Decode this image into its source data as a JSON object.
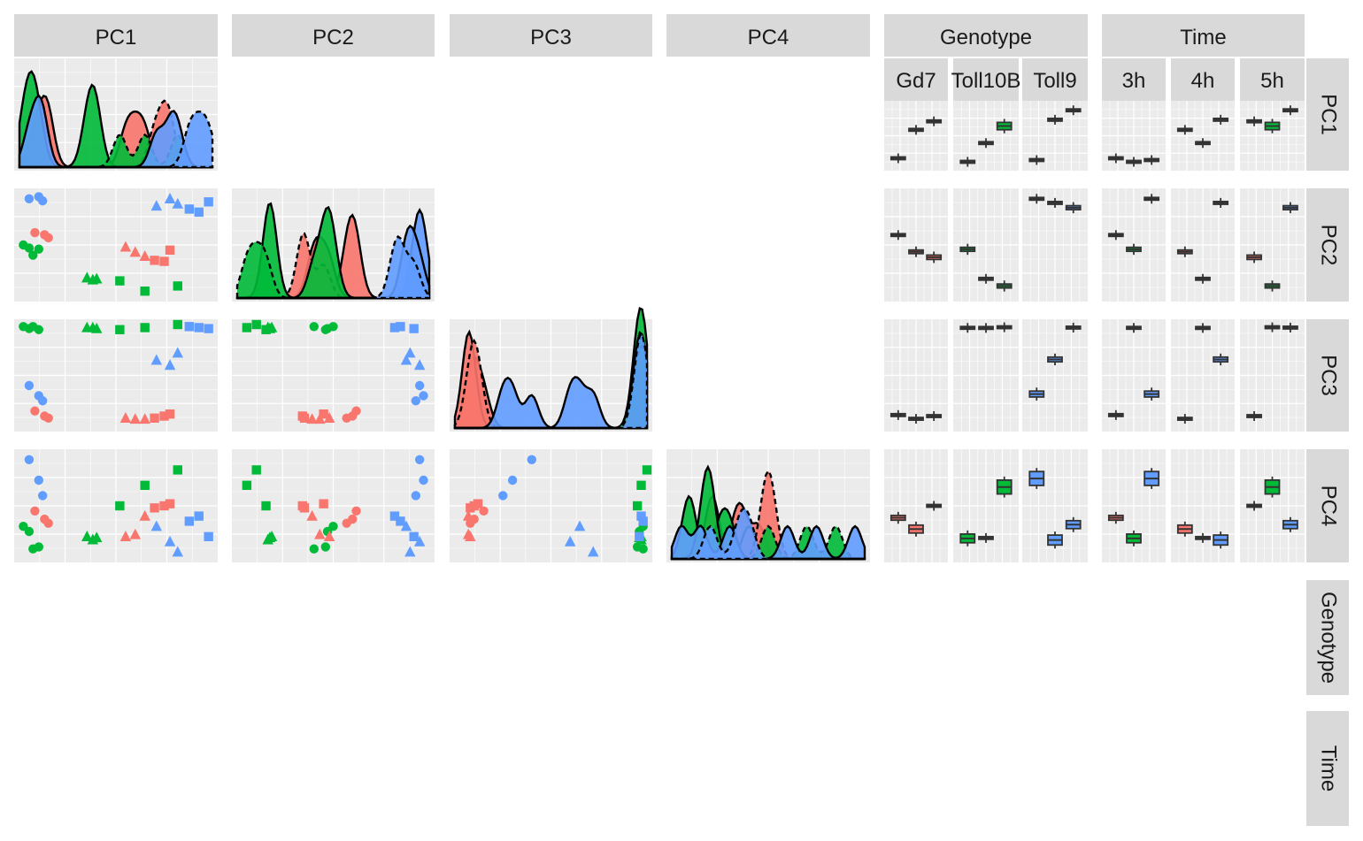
{
  "chart_data": {
    "type": "scatter-matrix",
    "title": "",
    "variables": [
      "PC1",
      "PC2",
      "PC3",
      "PC4",
      "Genotype",
      "Time"
    ],
    "group_levels": {
      "Genotype": [
        "Gd7",
        "Toll10B",
        "Toll9"
      ],
      "Time": [
        "3h",
        "4h",
        "5h"
      ]
    },
    "facet_labels": {
      "columns": [
        "PC1",
        "PC2",
        "PC3",
        "PC4",
        "Genotype",
        "Time"
      ],
      "rows": [
        "PC1",
        "PC2",
        "PC3",
        "PC4",
        "Genotype",
        "Time"
      ],
      "genotype_sub": [
        "Gd7",
        "Toll10B",
        "Toll9"
      ],
      "time_sub": [
        "3h",
        "4h",
        "5h"
      ]
    },
    "encoding": {
      "color": "Genotype",
      "shape": "Time",
      "shape_map": {
        "3h": "circle",
        "4h": "triangle",
        "5h": "square"
      },
      "density_linetype": {
        "3h": "solid",
        "4h": "solid",
        "5h": "dashed"
      }
    },
    "colors": {
      "Gd7": "#F8766D",
      "Toll10B": "#00BA38",
      "Toll9": "#619CFF"
    },
    "samples": [
      {
        "genotype": "Toll9",
        "time": "3h",
        "pc": [
          0.05,
          0.95,
          0.4,
          0.95
        ]
      },
      {
        "genotype": "Toll9",
        "time": "3h",
        "pc": [
          0.1,
          0.97,
          0.3,
          0.75
        ]
      },
      {
        "genotype": "Toll9",
        "time": "3h",
        "pc": [
          0.12,
          0.93,
          0.25,
          0.6
        ]
      },
      {
        "genotype": "Gd7",
        "time": "3h",
        "pc": [
          0.08,
          0.62,
          0.15,
          0.45
        ]
      },
      {
        "genotype": "Gd7",
        "time": "3h",
        "pc": [
          0.13,
          0.6,
          0.1,
          0.37
        ]
      },
      {
        "genotype": "Gd7",
        "time": "3h",
        "pc": [
          0.15,
          0.57,
          0.08,
          0.33
        ]
      },
      {
        "genotype": "Toll10B",
        "time": "3h",
        "pc": [
          0.02,
          0.5,
          0.98,
          0.3
        ]
      },
      {
        "genotype": "Toll10B",
        "time": "3h",
        "pc": [
          0.05,
          0.47,
          0.96,
          0.25
        ]
      },
      {
        "genotype": "Toll10B",
        "time": "3h",
        "pc": [
          0.1,
          0.46,
          0.95,
          0.1
        ]
      },
      {
        "genotype": "Toll10B",
        "time": "3h",
        "pc": [
          0.07,
          0.4,
          0.98,
          0.08
        ]
      },
      {
        "genotype": "Toll10B",
        "time": "4h",
        "pc": [
          0.35,
          0.18,
          0.97,
          0.2
        ]
      },
      {
        "genotype": "Toll10B",
        "time": "4h",
        "pc": [
          0.38,
          0.16,
          0.97,
          0.17
        ]
      },
      {
        "genotype": "Toll10B",
        "time": "4h",
        "pc": [
          0.4,
          0.17,
          0.96,
          0.19
        ]
      },
      {
        "genotype": "Gd7",
        "time": "4h",
        "pc": [
          0.55,
          0.48,
          0.08,
          0.2
        ]
      },
      {
        "genotype": "Gd7",
        "time": "4h",
        "pc": [
          0.6,
          0.43,
          0.07,
          0.22
        ]
      },
      {
        "genotype": "Gd7",
        "time": "4h",
        "pc": [
          0.65,
          0.39,
          0.07,
          0.4
        ]
      },
      {
        "genotype": "Toll9",
        "time": "4h",
        "pc": [
          0.71,
          0.88,
          0.65,
          0.3
        ]
      },
      {
        "genotype": "Toll9",
        "time": "4h",
        "pc": [
          0.78,
          0.95,
          0.6,
          0.15
        ]
      },
      {
        "genotype": "Toll9",
        "time": "4h",
        "pc": [
          0.82,
          0.9,
          0.72,
          0.05
        ]
      },
      {
        "genotype": "Toll10B",
        "time": "5h",
        "pc": [
          0.52,
          0.15,
          0.95,
          0.5
        ]
      },
      {
        "genotype": "Toll10B",
        "time": "5h",
        "pc": [
          0.65,
          0.05,
          0.97,
          0.7
        ]
      },
      {
        "genotype": "Toll10B",
        "time": "5h",
        "pc": [
          0.82,
          0.1,
          1.0,
          0.85
        ]
      },
      {
        "genotype": "Gd7",
        "time": "5h",
        "pc": [
          0.7,
          0.35,
          0.08,
          0.48
        ]
      },
      {
        "genotype": "Gd7",
        "time": "5h",
        "pc": [
          0.75,
          0.34,
          0.1,
          0.5
        ]
      },
      {
        "genotype": "Gd7",
        "time": "5h",
        "pc": [
          0.78,
          0.45,
          0.12,
          0.52
        ]
      },
      {
        "genotype": "Toll9",
        "time": "5h",
        "pc": [
          0.88,
          0.85,
          0.98,
          0.35
        ]
      },
      {
        "genotype": "Toll9",
        "time": "5h",
        "pc": [
          0.93,
          0.82,
          0.97,
          0.4
        ]
      },
      {
        "genotype": "Toll9",
        "time": "5h",
        "pc": [
          0.98,
          0.92,
          0.96,
          0.2
        ]
      }
    ]
  }
}
